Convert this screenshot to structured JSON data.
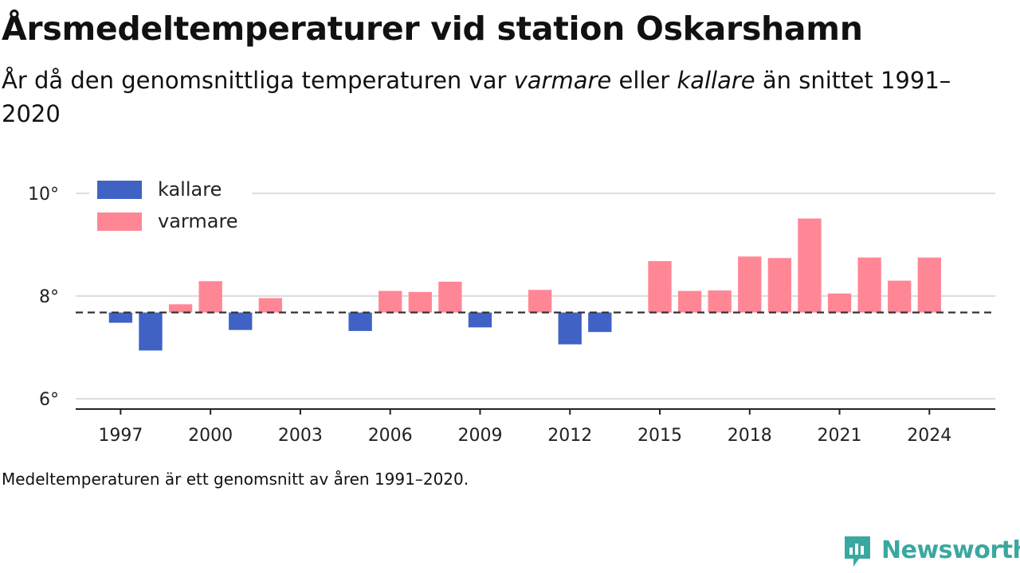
{
  "title": "Årsmedeltemperaturer vid station Oskarshamn",
  "subtitle": {
    "part1": "År då den genomsnittliga temperaturen var ",
    "warmer_word": "varmare",
    "part2": " eller ",
    "colder_word": "kallare",
    "part3": " än snittet 1991–2020"
  },
  "note": "Medeltemperaturen är ett genomsnitt av åren 1991–2020.",
  "brand": "Newsworthy",
  "colors": {
    "colder": "#3f62c4",
    "warmer": "#ff8795",
    "baseline": "#333333",
    "grid": "#dddddd",
    "brand": "#3aa8a0"
  },
  "chart_data": {
    "type": "bar",
    "baseline": 7.68,
    "ylim": [
      5.8,
      10.2
    ],
    "xlim": [
      1995.5,
      2026.2
    ],
    "yticks": [
      6,
      8,
      10
    ],
    "ytick_labels": [
      "6°",
      "8°",
      "10°"
    ],
    "xticks": [
      1997,
      2000,
      2003,
      2006,
      2009,
      2012,
      2015,
      2018,
      2021,
      2024
    ],
    "xtick_labels": [
      "1997",
      "2000",
      "2003",
      "2006",
      "2009",
      "2012",
      "2015",
      "2018",
      "2021",
      "2024"
    ],
    "legend": {
      "position": "top-left",
      "items": [
        {
          "label": "kallare",
          "key": "colder"
        },
        {
          "label": "varmare",
          "key": "warmer"
        }
      ]
    },
    "series": [
      {
        "name": "kallare",
        "x": [
          1997,
          1998,
          2001,
          2005,
          2009,
          2012,
          2013
        ],
        "y": [
          7.48,
          6.94,
          7.34,
          7.32,
          7.39,
          7.06,
          7.3
        ]
      },
      {
        "name": "varmare",
        "x": [
          1999,
          2000,
          2002,
          2006,
          2007,
          2008,
          2011,
          2015,
          2016,
          2017,
          2018,
          2019,
          2020,
          2021,
          2022,
          2023,
          2024
        ],
        "y": [
          7.84,
          8.29,
          7.96,
          8.1,
          8.08,
          8.28,
          8.12,
          8.68,
          8.1,
          8.11,
          8.77,
          8.74,
          9.51,
          8.05,
          8.75,
          8.3,
          8.75
        ]
      }
    ]
  }
}
